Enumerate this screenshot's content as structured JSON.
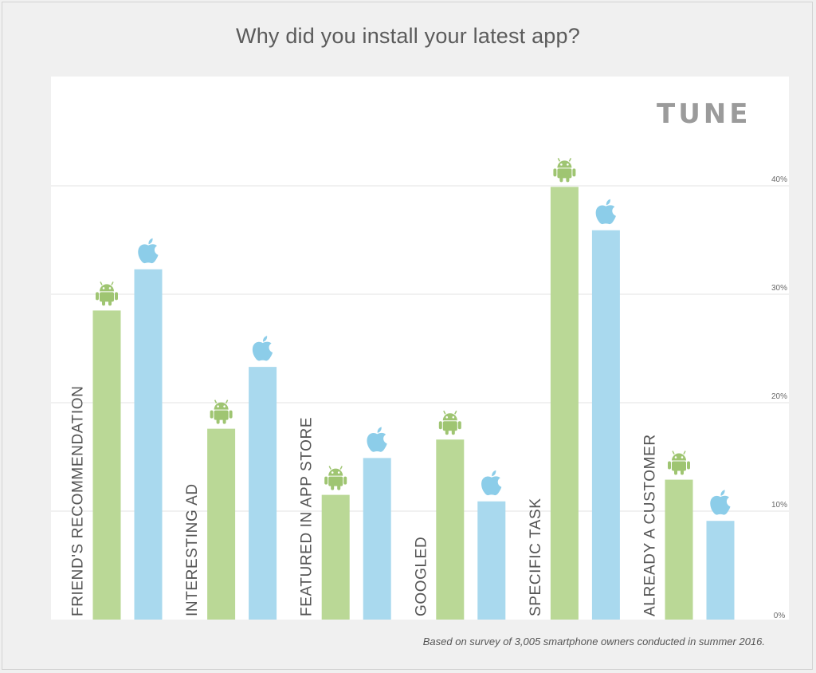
{
  "title": "Why did you install your latest app?",
  "logo_text": "TUNE",
  "footnote": "Based on survey of 3,005 smartphone owners conducted in summer 2016.",
  "colors": {
    "android": "#bad896",
    "ios": "#a9d9ee",
    "android_icon": "#9fc572",
    "ios_icon": "#8ccde9",
    "grid": "#e3e3e3"
  },
  "icons": {
    "android": "android-icon",
    "ios": "apple-icon"
  },
  "chart_data": {
    "type": "bar",
    "title": "Why did you install your latest app?",
    "categories": [
      "FRIEND'S RECOMMENDATION",
      "INTERESTING AD",
      "FEATURED IN APP STORE",
      "GOOGLED",
      "SPECIFIC TASK",
      "ALREADY A CUSTOMER"
    ],
    "series": [
      {
        "values": [
          28.5,
          17.6,
          11.5,
          16.6,
          39.9,
          12.9
        ]
      },
      {
        "values": [
          32.3,
          23.3,
          14.9,
          10.9,
          35.9,
          9.1
        ]
      }
    ],
    "yticks": [
      "0%",
      "10%",
      "20%",
      "30%",
      "40%"
    ],
    "ylim": [
      0,
      40
    ],
    "grid": true,
    "legend": "icons above bars (android, apple)"
  }
}
